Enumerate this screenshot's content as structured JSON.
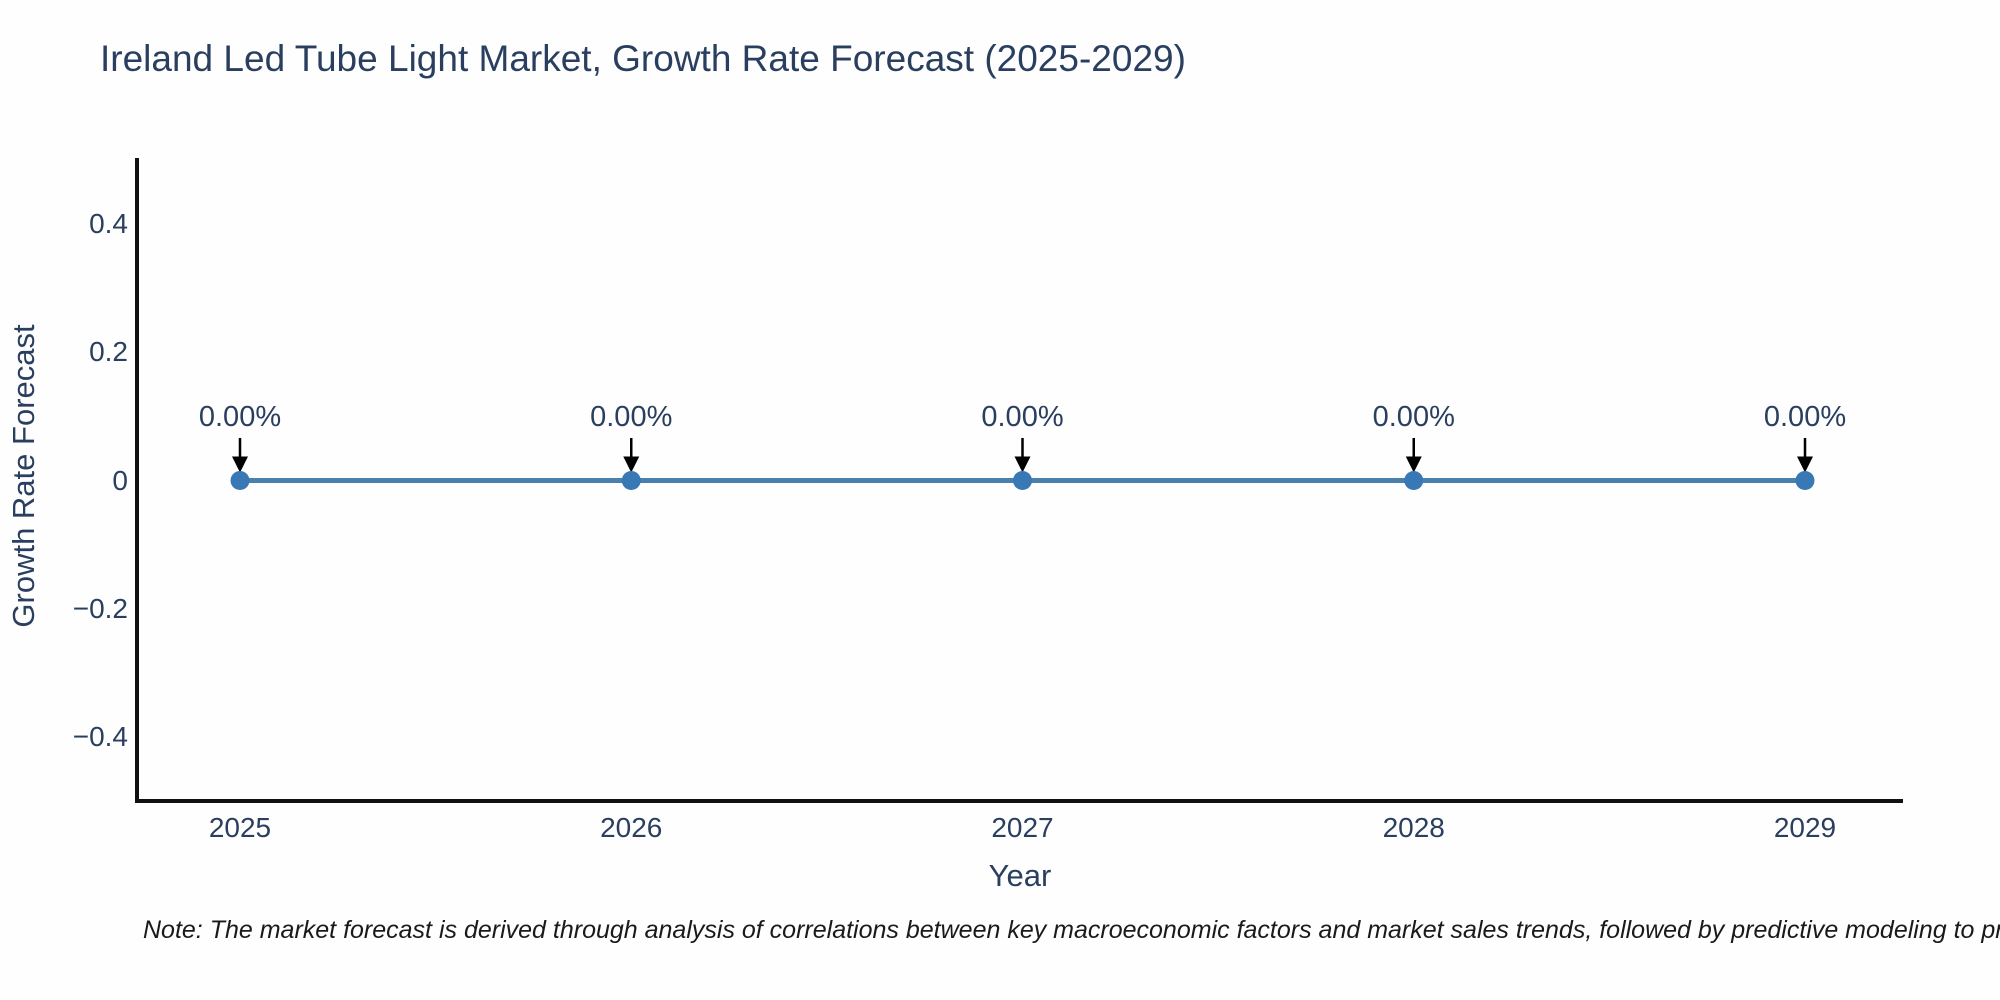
{
  "page": {
    "background_color": "#fefefe",
    "text_color": "#2a3f5f"
  },
  "chart_data": {
    "type": "line",
    "title": "Ireland Led Tube Light Market, Growth Rate Forecast (2025-2029)",
    "xlabel": "Year",
    "ylabel": "Growth Rate Forecast",
    "categories": [
      "2025",
      "2026",
      "2027",
      "2028",
      "2029"
    ],
    "series": [
      {
        "name": "Growth Rate Forecast",
        "values": [
          0,
          0,
          0,
          0,
          0
        ]
      }
    ],
    "point_labels": [
      "0.00%",
      "0.00%",
      "0.00%",
      "0.00%",
      "0.00%"
    ],
    "ylim": [
      -0.5,
      0.5
    ],
    "yticks": [
      {
        "value": 0.4,
        "label": "0.4"
      },
      {
        "value": 0.2,
        "label": "0.2"
      },
      {
        "value": 0,
        "label": "0"
      },
      {
        "value": -0.2,
        "label": "−0.2"
      },
      {
        "value": -0.4,
        "label": "−0.4"
      }
    ],
    "grid": false,
    "legend_position": "none",
    "line_color": "#4a80ac",
    "marker_color": "#3878b4",
    "arrow_color": "#000000",
    "axis_color": "#111111",
    "note": "Note: The market forecast is derived through analysis of correlations between key macroeconomic factors and market sales trends, followed by predictive modeling to project future sales"
  }
}
